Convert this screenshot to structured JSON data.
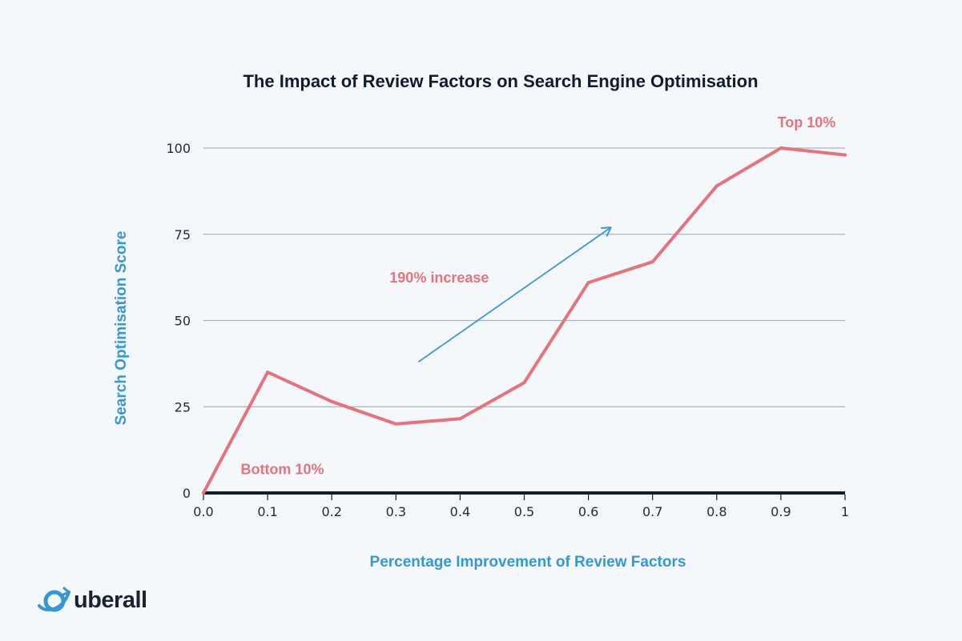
{
  "colors": {
    "line": "#e5737b",
    "arrow": "#3a9ad6",
    "axis_label": "#3497d6",
    "title": "#0f1c2e",
    "grid": "#a9b3bf",
    "baseline": "#0f1c2e",
    "annotation": "#e5737b",
    "logo_accent": "#3497d6"
  },
  "chart_data": {
    "type": "line",
    "title": "The Impact of Review Factors on Search Engine Optimisation",
    "xlabel": "Percentage Improvement of Review Factors",
    "ylabel": "Search Optimisation Score",
    "xlim": [
      0,
      1
    ],
    "ylim": [
      0,
      100
    ],
    "x_ticks": [
      0,
      0.1,
      0.2,
      0.3,
      0.4,
      0.5,
      0.6,
      0.7,
      0.8,
      0.9,
      1
    ],
    "x_tick_labels": [
      "0.0",
      "0.1",
      "0.2",
      "0.3",
      "0.4",
      "0.5",
      "0.6",
      "0.7",
      "0.8",
      "0.9",
      "1"
    ],
    "y_ticks": [
      0,
      25,
      50,
      75,
      100
    ],
    "y_tick_labels": [
      "0",
      "25",
      "50",
      "75",
      "100"
    ],
    "grid": "horizontal",
    "series": [
      {
        "x": [
          0,
          0.1,
          0.2,
          0.3,
          0.4,
          0.5,
          0.6,
          0.7,
          0.8,
          0.9,
          1
        ],
        "values": [
          0,
          35,
          26.5,
          20,
          21.5,
          32,
          61,
          67,
          89,
          100,
          98
        ]
      }
    ],
    "annotations": [
      {
        "text": "Top 10%",
        "x": 0.94,
        "y": 106,
        "anchor": "middle"
      },
      {
        "text": "Bottom 10%",
        "x": 0.058,
        "y": 5.5,
        "anchor": "start"
      },
      {
        "text": "190% increase",
        "x": 0.29,
        "y": 61,
        "anchor": "start"
      }
    ],
    "trend_arrow": {
      "from": [
        0.335,
        38
      ],
      "to": [
        0.635,
        77
      ]
    }
  },
  "logo": {
    "text": "uberall",
    "icon": "globe-planet-icon"
  }
}
